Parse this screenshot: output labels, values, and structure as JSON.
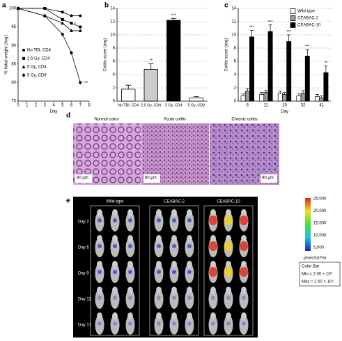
{
  "panel_labels": [
    "a",
    "b",
    "c",
    "d",
    "e"
  ],
  "chart_data": [
    {
      "type": "line",
      "x": [
        0,
        3,
        5,
        6,
        7
      ],
      "xlim": [
        0,
        8
      ],
      "xticks": [
        0,
        1,
        2,
        3,
        4,
        5,
        6,
        7,
        8
      ],
      "ylim": [
        75,
        100
      ],
      "yticks": [
        75,
        80,
        85,
        90,
        95,
        100
      ],
      "x_label": "Day",
      "y_label": "% Initial weight (Avg)",
      "legend": "lower left",
      "series": [
        {
          "name": "No TBI, CD4",
          "color": "#000000",
          "marker": "circle",
          "values": [
            100,
            100,
            99,
            98,
            98
          ],
          "point_labels": [
            null,
            null,
            null,
            null,
            null
          ]
        },
        {
          "name": "2.5 Gy, CD4",
          "color": "#000000",
          "marker": "square",
          "values": [
            100,
            100,
            97,
            96,
            95
          ],
          "point_labels": [
            null,
            null,
            null,
            "*",
            null
          ]
        },
        {
          "name": "5 Gy, CD4",
          "color": "#000000",
          "marker": "triangle",
          "values": [
            100,
            98,
            96,
            94,
            94
          ],
          "point_labels": [
            null,
            null,
            null,
            null,
            null
          ]
        },
        {
          "name": "5 Gy, CD8",
          "color": "#000000",
          "marker": "diamond",
          "values": [
            100,
            98,
            93,
            88,
            80
          ],
          "point_labels": [
            null,
            null,
            null,
            null,
            "***"
          ]
        }
      ]
    },
    {
      "type": "bar",
      "categories": [
        "No TBI, CD4",
        "2.5 Gy, CD4",
        "5 Gy, CD4",
        "5 Gy, CD8"
      ],
      "values": [
        1.8,
        4.8,
        12.2,
        0.5
      ],
      "errors": [
        0.6,
        0.9,
        0.3,
        0.2
      ],
      "colors": [
        "#ffffff",
        "#cccccc",
        "#000000",
        "#ffffff"
      ],
      "significance": [
        null,
        "**",
        "***",
        null
      ],
      "ylim": [
        0,
        14
      ],
      "yticks": [
        0,
        2,
        4,
        6,
        8,
        10,
        12,
        14
      ],
      "y_label": "Colitis score (avg)",
      "grid": true
    },
    {
      "type": "grouped_bar",
      "categories": [
        "6",
        "11",
        "19",
        "32",
        "41"
      ],
      "x_label": "Day",
      "y_label": "Colitis score (avg)",
      "ylim": [
        0,
        14
      ],
      "yticks": [
        0,
        2,
        4,
        6,
        8,
        10,
        12,
        14
      ],
      "grid": true,
      "legend": "upper right",
      "significance": [
        "***",
        "***",
        "***",
        "***",
        "**"
      ],
      "series": [
        {
          "name": "Wild-type",
          "color": "#ffffff",
          "values": [
            0.8,
            1.0,
            1.2,
            0.8,
            0.7
          ],
          "errors": [
            0.3,
            0.3,
            0.3,
            0.3,
            0.3
          ]
        },
        {
          "name": "CEABAC-2",
          "color": "#999999",
          "values": [
            1.5,
            1.3,
            1.0,
            1.2,
            0.5
          ],
          "errors": [
            0.4,
            0.3,
            0.3,
            0.4,
            0.3
          ]
        },
        {
          "name": "CEABAC-10",
          "color": "#000000",
          "values": [
            9.7,
            10.5,
            9.0,
            6.8,
            4.3
          ],
          "errors": [
            1.0,
            1.0,
            1.0,
            1.0,
            1.0
          ]
        }
      ]
    }
  ],
  "histology": {
    "titles": [
      "Normal colon",
      "Acute colitis",
      "Chronic colitis"
    ],
    "scale_bars": [
      "80 µm",
      "80 µm",
      "80 µm"
    ]
  },
  "imaging": {
    "groups": [
      "Wild-type",
      "CEABAC-2",
      "CEABAC-10"
    ],
    "days": [
      "Day 2",
      "Day 5",
      "Day 9",
      "Day 13",
      "Day 17"
    ],
    "colorbar_labels": [
      "25,000",
      "20,000",
      "15,000",
      "10,000",
      "5,000"
    ],
    "unit": "p/sec/cm²/sr",
    "box_title": "Color Bar",
    "min": "Min = 2.00 × 10³",
    "max": "Max = 2.50 × 10⁴"
  }
}
